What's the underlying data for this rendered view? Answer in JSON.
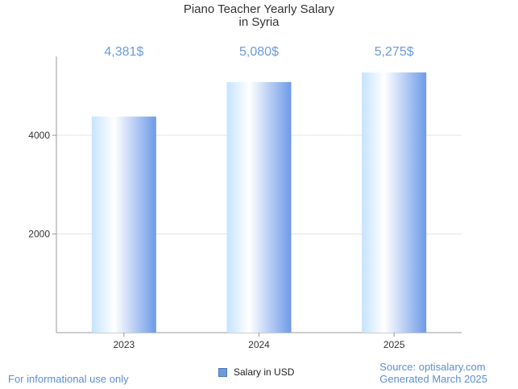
{
  "chart_data": {
    "type": "bar",
    "title_line1": "Piano Teacher Yearly Salary",
    "title_line2": "in Syria",
    "categories": [
      "2023",
      "2024",
      "2025"
    ],
    "series": [
      {
        "name": "Salary in USD",
        "values": [
          4381,
          5080,
          5275
        ]
      }
    ],
    "data_labels": [
      "4,381$",
      "5,080$",
      "5,275$"
    ],
    "y_ticks": [
      2000,
      4000
    ],
    "ylim": [
      0,
      5600
    ],
    "grid": true,
    "legend_position": "bottom-center",
    "bar_colors": [
      "#c6e3ff",
      "#ffffff",
      "#6e9ae8"
    ],
    "label_color": "#6b9ae0"
  },
  "footer": {
    "left_note": "For informational use only",
    "source": "Source: optisalary.com",
    "generated": "Generated March 2025"
  }
}
